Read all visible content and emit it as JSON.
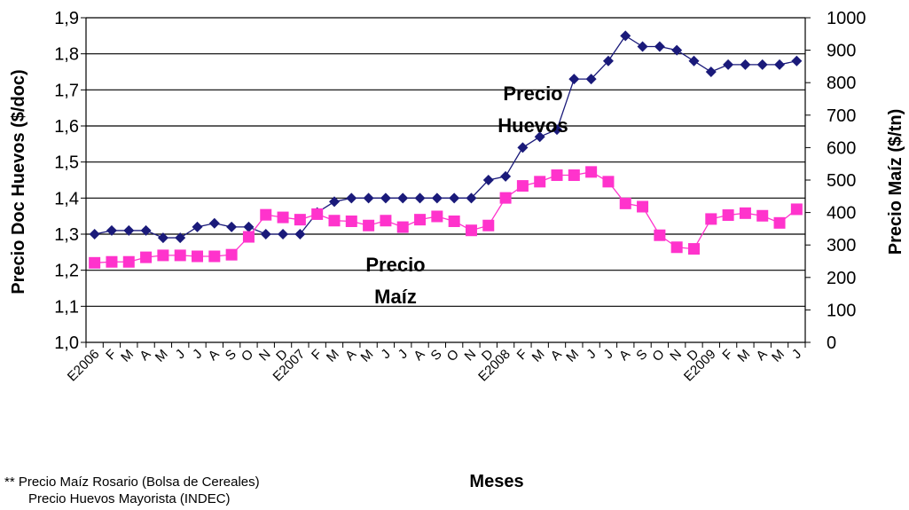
{
  "chart_data": {
    "type": "line",
    "xlabel": "Meses",
    "ylabel_left": "Precio Doc Huevos ($/doc)",
    "ylabel_right": "Precio Maíz ($/tn)",
    "ylim_left": [
      1.0,
      1.9
    ],
    "ylim_right": [
      0,
      1000
    ],
    "yticks_left": [
      "1,0",
      "1,1",
      "1,2",
      "1,3",
      "1,4",
      "1,5",
      "1,6",
      "1,7",
      "1,8",
      "1,9"
    ],
    "yticks_right": [
      "0",
      "100",
      "200",
      "300",
      "400",
      "500",
      "600",
      "700",
      "800",
      "900",
      "1000"
    ],
    "x_tick_labels": [
      "E2006",
      "F",
      "M",
      "A",
      "M",
      "J",
      "J",
      "A",
      "S",
      "O",
      "N",
      "D",
      "E2007",
      "F",
      "M",
      "A",
      "M",
      "J",
      "J",
      "A",
      "S",
      "O",
      "N",
      "D",
      "E2008",
      "F",
      "M",
      "A",
      "M",
      "J",
      "J",
      "A",
      "S",
      "O",
      "N",
      "D",
      "E2009",
      "F",
      "M",
      "A",
      "M",
      "J"
    ],
    "grid": "horizontal",
    "series": [
      {
        "name": "Precio Huevos",
        "axis": "left",
        "color": "#1a1a7a",
        "marker": "diamond",
        "values": [
          1.3,
          1.31,
          1.31,
          1.31,
          1.29,
          1.29,
          1.32,
          1.33,
          1.32,
          1.32,
          1.3,
          1.3,
          1.3,
          1.36,
          1.39,
          1.4,
          1.4,
          1.4,
          1.4,
          1.4,
          1.4,
          1.4,
          1.4,
          1.45,
          1.46,
          1.54,
          1.57,
          1.59,
          1.73,
          1.73,
          1.78,
          1.85,
          1.82,
          1.82,
          1.81,
          1.78,
          1.75,
          1.77,
          1.77,
          1.77,
          1.77,
          1.78
        ]
      },
      {
        "name": "Precio Maíz",
        "axis": "right",
        "color": "#ff33cc",
        "marker": "square",
        "values": [
          245,
          248,
          248,
          262,
          268,
          268,
          265,
          265,
          270,
          325,
          393,
          385,
          378,
          395,
          375,
          373,
          360,
          375,
          355,
          378,
          388,
          373,
          345,
          360,
          445,
          482,
          495,
          515,
          515,
          525,
          495,
          428,
          418,
          330,
          293,
          288,
          380,
          392,
          398,
          390,
          368,
          410
        ]
      }
    ],
    "annotations": [
      {
        "lines": [
          "Precio",
          "Huevos"
        ]
      },
      {
        "lines": [
          "Precio",
          "Maíz"
        ]
      }
    ]
  },
  "source_note": {
    "line1": "** Precio Maíz Rosario (Bolsa de Cereales)",
    "line2": "Precio Huevos Mayorista (INDEC)"
  }
}
